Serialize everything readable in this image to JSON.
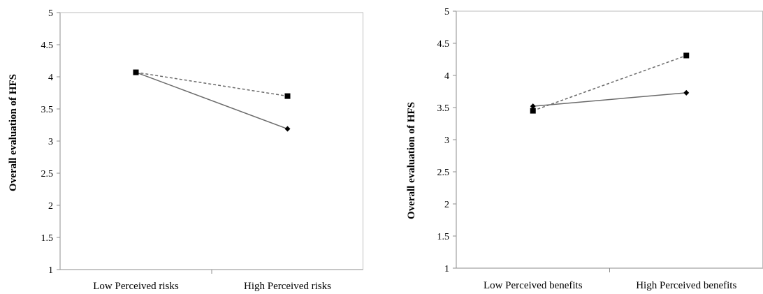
{
  "chart_data": [
    {
      "type": "line",
      "title": "",
      "xlabel": "",
      "ylabel": "Overall evaluation of HFS",
      "categories": [
        "Low Perceived risks",
        "High Perceived risks"
      ],
      "ylim": [
        1,
        5
      ],
      "yticks": [
        "1",
        "1.5",
        "2",
        "2.5",
        "3",
        "3.5",
        "4",
        "4.5",
        "5"
      ],
      "grid": false,
      "legend": "none",
      "series": [
        {
          "values": [
            4.07,
            3.19
          ],
          "line_style": "solid",
          "marker": "diamond",
          "color": "#6b6b6b"
        },
        {
          "values": [
            4.07,
            3.7
          ],
          "line_style": "dashed",
          "marker": "square",
          "color": "#6b6b6b"
        }
      ]
    },
    {
      "type": "line",
      "title": "",
      "xlabel": "",
      "ylabel": "Overall evaluation of HFS",
      "categories": [
        "Low Perceived benefits",
        "High Perceived benefits"
      ],
      "ylim": [
        1,
        5
      ],
      "yticks": [
        "1",
        "1.5",
        "2",
        "2.5",
        "3",
        "3.5",
        "4",
        "4.5",
        "5"
      ],
      "grid": false,
      "legend": "none",
      "series": [
        {
          "values": [
            3.52,
            3.73
          ],
          "line_style": "solid",
          "marker": "diamond",
          "color": "#6b6b6b"
        },
        {
          "values": [
            3.45,
            4.31
          ],
          "line_style": "dashed",
          "marker": "square",
          "color": "#6b6b6b"
        }
      ]
    }
  ]
}
